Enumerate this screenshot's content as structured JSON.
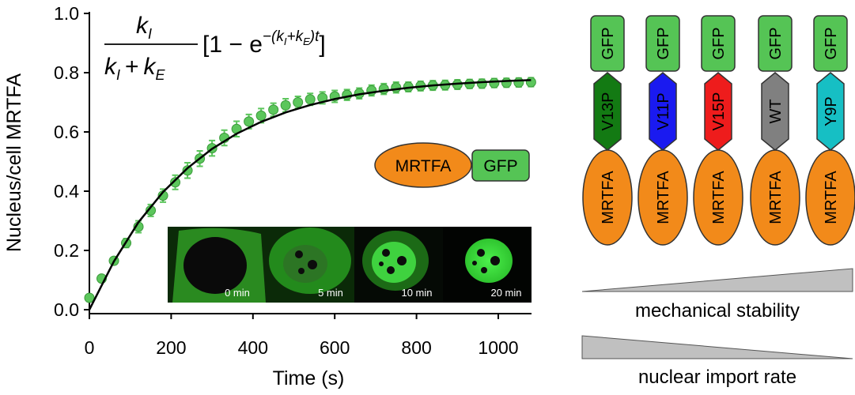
{
  "chart_data": {
    "type": "scatter",
    "xlabel": "Time (s)",
    "ylabel": "Nucleus/cell MRTFA",
    "xlim": [
      0,
      1080
    ],
    "ylim": [
      0,
      1.0
    ],
    "xticks": [
      0,
      200,
      400,
      600,
      800,
      1000
    ],
    "yticks": [
      0.0,
      0.2,
      0.4,
      0.6,
      0.8,
      1.0
    ],
    "xtick_labels": [
      "0",
      "200",
      "400",
      "600",
      "800",
      "1000"
    ],
    "ytick_labels": [
      "0.0",
      "0.2",
      "0.4",
      "0.6",
      "0.8",
      "1.0"
    ],
    "series": [
      {
        "name": "MRTFA-GFP",
        "x": [
          0,
          30,
          60,
          90,
          120,
          150,
          180,
          210,
          240,
          270,
          300,
          330,
          360,
          390,
          420,
          450,
          480,
          510,
          540,
          570,
          600,
          630,
          660,
          690,
          720,
          750,
          780,
          810,
          840,
          870,
          900,
          930,
          960,
          990,
          1020,
          1050,
          1080
        ],
        "y": [
          0.04,
          0.105,
          0.165,
          0.225,
          0.28,
          0.335,
          0.385,
          0.43,
          0.47,
          0.51,
          0.545,
          0.58,
          0.61,
          0.635,
          0.655,
          0.675,
          0.69,
          0.7,
          0.71,
          0.715,
          0.72,
          0.725,
          0.73,
          0.74,
          0.745,
          0.75,
          0.752,
          0.755,
          0.757,
          0.758,
          0.76,
          0.762,
          0.763,
          0.765,
          0.766,
          0.767,
          0.768
        ],
        "err": [
          0.01,
          0.01,
          0.01,
          0.015,
          0.02,
          0.02,
          0.022,
          0.024,
          0.026,
          0.026,
          0.026,
          0.026,
          0.026,
          0.024,
          0.024,
          0.022,
          0.022,
          0.02,
          0.02,
          0.02,
          0.02,
          0.018,
          0.018,
          0.018,
          0.018,
          0.018,
          0.016,
          0.016,
          0.016,
          0.016,
          0.016,
          0.015,
          0.015,
          0.015,
          0.015,
          0.015,
          0.015
        ],
        "color": "#5cc65c"
      },
      {
        "name": "fit",
        "type": "line",
        "x": [
          0,
          60,
          120,
          180,
          240,
          300,
          360,
          420,
          480,
          540,
          600,
          660,
          720,
          780,
          840,
          900,
          960,
          1020,
          1080
        ],
        "y": [
          0.0,
          0.163,
          0.295,
          0.397,
          0.478,
          0.543,
          0.594,
          0.634,
          0.666,
          0.691,
          0.711,
          0.727,
          0.739,
          0.749,
          0.757,
          0.763,
          0.768,
          0.772,
          0.775
        ],
        "color": "#000000"
      }
    ]
  },
  "formula": {
    "numerator": "k",
    "numerator_sub": "I",
    "denominator": "k",
    "denominator_sub1": "I",
    "plus": "+",
    "denominator_k2": "k",
    "denominator_sub2": "E",
    "bracket_expr": "[1 − e",
    "exponent": "−(k",
    "exp_sub1": "I",
    "exp_plus": "+k",
    "exp_sub2": "E",
    "exp_end": ")t",
    "close_bracket": "]"
  },
  "fusion_label": {
    "mrtfa": "MRTFA",
    "gfp": "GFP",
    "mrtfa_color": "#f28a1a",
    "gfp_color": "#55c455"
  },
  "inset": {
    "time_labels": [
      "0 min",
      "5 min",
      "10 min",
      "20 min"
    ]
  },
  "constructs": [
    {
      "top": "GFP",
      "mid": "V13P",
      "bottom": "MRTFA",
      "mid_color": "#137a13"
    },
    {
      "top": "GFP",
      "mid": "V11P",
      "bottom": "MRTFA",
      "mid_color": "#1a1af0"
    },
    {
      "top": "GFP",
      "mid": "V15P",
      "bottom": "MRTFA",
      "mid_color": "#ee1c1c"
    },
    {
      "top": "GFP",
      "mid": "WT",
      "bottom": "MRTFA",
      "mid_color": "#808080"
    },
    {
      "top": "GFP",
      "mid": "Y9P",
      "bottom": "MRTFA",
      "mid_color": "#16bfc4"
    }
  ],
  "wedges": {
    "stability_label": "mechanical stability",
    "import_label": "nuclear import rate",
    "fill": "#c0c0c0"
  }
}
